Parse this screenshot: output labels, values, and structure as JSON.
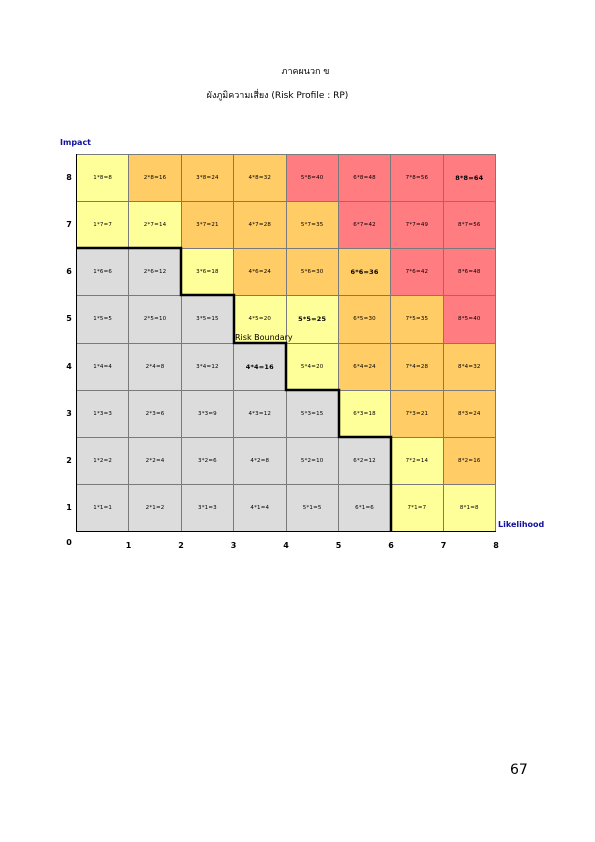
{
  "header": {
    "appendix": "ภาคผนวก ข",
    "title": "ผังภูมิความเสี่ยง (Risk Profile : RP)"
  },
  "axes": {
    "y_title": "Impact",
    "x_title": "Likelihood",
    "origin": "0",
    "y_ticks": [
      "8",
      "7",
      "6",
      "5",
      "4",
      "3",
      "2",
      "1"
    ],
    "x_ticks": [
      "1",
      "2",
      "3",
      "4",
      "5",
      "6",
      "7",
      "8"
    ]
  },
  "boundary_label": "Risk Boundary",
  "colors": {
    "grey": "#dcdcdc",
    "yellow": "#ffff99",
    "orange": "#ffcc66",
    "red": "#ff7c80"
  },
  "rows": [
    {
      "impact": "8",
      "cells": [
        {
          "text": "1*8=8",
          "color": "yellow"
        },
        {
          "text": "2*8=16",
          "color": "orange"
        },
        {
          "text": "3*8=24",
          "color": "orange"
        },
        {
          "text": "4*8=32",
          "color": "orange"
        },
        {
          "text": "5*8=40",
          "color": "red"
        },
        {
          "text": "6*8=48",
          "color": "red"
        },
        {
          "text": "7*8=56",
          "color": "red"
        },
        {
          "text": "8*8=64",
          "color": "red",
          "bold": true
        }
      ]
    },
    {
      "impact": "7",
      "cells": [
        {
          "text": "1*7=7",
          "color": "yellow"
        },
        {
          "text": "2*7=14",
          "color": "yellow"
        },
        {
          "text": "3*7=21",
          "color": "orange"
        },
        {
          "text": "4*7=28",
          "color": "orange"
        },
        {
          "text": "5*7=35",
          "color": "orange"
        },
        {
          "text": "6*7=42",
          "color": "red"
        },
        {
          "text": "7*7=49",
          "color": "red"
        },
        {
          "text": "8*7=56",
          "color": "red"
        }
      ]
    },
    {
      "impact": "6",
      "cells": [
        {
          "text": "1*6=6",
          "color": "grey"
        },
        {
          "text": "2*6=12",
          "color": "grey"
        },
        {
          "text": "3*6=18",
          "color": "yellow"
        },
        {
          "text": "4*6=24",
          "color": "orange"
        },
        {
          "text": "5*6=30",
          "color": "orange"
        },
        {
          "text": "6*6=36",
          "color": "orange",
          "bold": true
        },
        {
          "text": "7*6=42",
          "color": "red"
        },
        {
          "text": "8*6=48",
          "color": "red"
        }
      ]
    },
    {
      "impact": "5",
      "cells": [
        {
          "text": "1*5=5",
          "color": "grey"
        },
        {
          "text": "2*5=10",
          "color": "grey"
        },
        {
          "text": "3*5=15",
          "color": "grey"
        },
        {
          "text": "4*5=20",
          "color": "yellow"
        },
        {
          "text": "5*5=25",
          "color": "yellow",
          "bold": true
        },
        {
          "text": "6*5=30",
          "color": "orange"
        },
        {
          "text": "7*5=35",
          "color": "orange"
        },
        {
          "text": "8*5=40",
          "color": "red"
        }
      ]
    },
    {
      "impact": "4",
      "cells": [
        {
          "text": "1*4=4",
          "color": "grey"
        },
        {
          "text": "2*4=8",
          "color": "grey"
        },
        {
          "text": "3*4=12",
          "color": "grey"
        },
        {
          "text": "4*4=16",
          "color": "grey",
          "bold": true
        },
        {
          "text": "5*4=20",
          "color": "yellow"
        },
        {
          "text": "6*4=24",
          "color": "orange"
        },
        {
          "text": "7*4=28",
          "color": "orange"
        },
        {
          "text": "8*4=32",
          "color": "orange"
        }
      ]
    },
    {
      "impact": "3",
      "cells": [
        {
          "text": "1*3=3",
          "color": "grey"
        },
        {
          "text": "2*3=6",
          "color": "grey"
        },
        {
          "text": "3*3=9",
          "color": "grey"
        },
        {
          "text": "4*3=12",
          "color": "grey"
        },
        {
          "text": "5*3=15",
          "color": "grey"
        },
        {
          "text": "6*3=18",
          "color": "yellow"
        },
        {
          "text": "7*3=21",
          "color": "orange"
        },
        {
          "text": "8*3=24",
          "color": "orange"
        }
      ]
    },
    {
      "impact": "2",
      "cells": [
        {
          "text": "1*2=2",
          "color": "grey"
        },
        {
          "text": "2*2=4",
          "color": "grey"
        },
        {
          "text": "3*2=6",
          "color": "grey"
        },
        {
          "text": "4*2=8",
          "color": "grey"
        },
        {
          "text": "5*2=10",
          "color": "grey"
        },
        {
          "text": "6*2=12",
          "color": "grey"
        },
        {
          "text": "7*2=14",
          "color": "yellow"
        },
        {
          "text": "8*2=16",
          "color": "orange"
        }
      ]
    },
    {
      "impact": "1",
      "cells": [
        {
          "text": "1*1=1",
          "color": "grey"
        },
        {
          "text": "2*1=2",
          "color": "grey"
        },
        {
          "text": "3*1=3",
          "color": "grey"
        },
        {
          "text": "4*1=4",
          "color": "grey"
        },
        {
          "text": "5*1=5",
          "color": "grey"
        },
        {
          "text": "6*1=6",
          "color": "grey"
        },
        {
          "text": "7*1=7",
          "color": "yellow"
        },
        {
          "text": "8*1=8",
          "color": "yellow"
        }
      ]
    }
  ],
  "page_number": "67"
}
